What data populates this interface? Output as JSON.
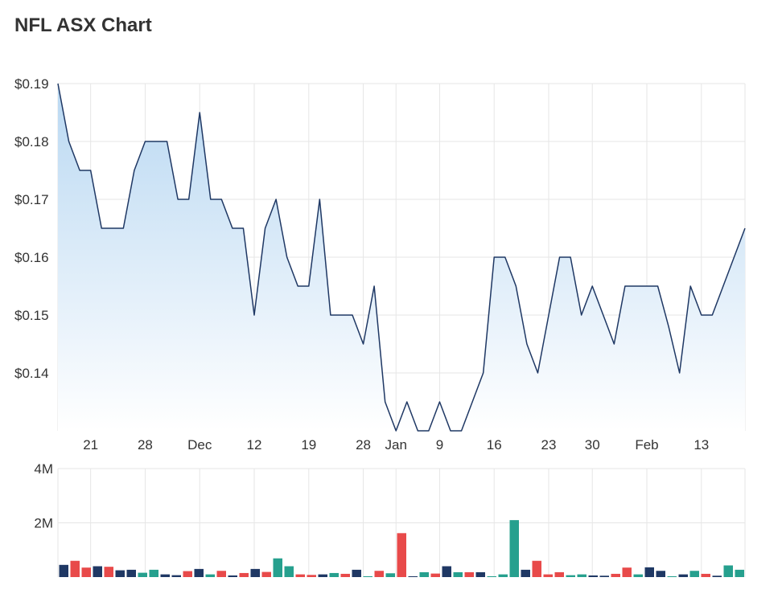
{
  "title": "NFL ASX Chart",
  "chart_data": [
    {
      "type": "area",
      "series": [
        {
          "values": [
            0.19,
            0.18,
            0.175,
            0.175,
            0.165,
            0.165,
            0.165,
            0.175,
            0.18,
            0.18,
            0.18,
            0.17,
            0.17,
            0.185,
            0.17,
            0.17,
            0.165,
            0.165,
            0.15,
            0.165,
            0.17,
            0.16,
            0.155,
            0.155,
            0.17,
            0.15,
            0.15,
            0.15,
            0.145,
            0.155,
            0.135,
            0.13,
            0.135,
            0.13,
            0.13,
            0.135,
            0.13,
            0.13,
            0.135,
            0.14,
            0.16,
            0.16,
            0.155,
            0.145,
            0.14,
            0.15,
            0.16,
            0.16,
            0.15,
            0.155,
            0.15,
            0.145,
            0.155,
            0.155,
            0.155,
            0.155,
            0.148,
            0.14,
            0.155,
            0.15,
            0.15,
            0.155,
            0.16,
            0.165
          ]
        }
      ],
      "y_tick_labels": [
        "$0.19",
        "$0.18",
        "$0.17",
        "$0.16",
        "$0.15",
        "$0.14"
      ],
      "y_ticks": [
        0.19,
        0.18,
        0.17,
        0.16,
        0.15,
        0.14
      ],
      "ylim": [
        0.13,
        0.19
      ],
      "x_tick_labels": [
        {
          "label": "21",
          "index": 3
        },
        {
          "label": "28",
          "index": 8
        },
        {
          "label": "Dec",
          "index": 13
        },
        {
          "label": "12",
          "index": 18
        },
        {
          "label": "19",
          "index": 23
        },
        {
          "label": "28",
          "index": 28
        },
        {
          "label": "Jan",
          "index": 31
        },
        {
          "label": "9",
          "index": 35
        },
        {
          "label": "16",
          "index": 40
        },
        {
          "label": "23",
          "index": 45
        },
        {
          "label": "30",
          "index": 49
        },
        {
          "label": "Feb",
          "index": 54
        },
        {
          "label": "13",
          "index": 59
        }
      ],
      "grid": true,
      "colors": {
        "line": "#1f3864",
        "fill_top": "#b9d8f2",
        "fill_bottom": "#ffffff",
        "grid": "#e6e6e6"
      }
    },
    {
      "type": "bar",
      "series": [
        {
          "values": [
            450000,
            600000,
            350000,
            400000,
            380000,
            250000,
            270000,
            160000,
            270000,
            100000,
            70000,
            220000,
            300000,
            100000,
            230000,
            60000,
            150000,
            300000,
            190000,
            690000,
            400000,
            100000,
            80000,
            100000,
            150000,
            120000,
            270000,
            20000,
            230000,
            140000,
            1620000,
            20000,
            180000,
            130000,
            400000,
            180000,
            180000,
            180000,
            30000,
            100000,
            2100000,
            270000,
            600000,
            100000,
            180000,
            70000,
            100000,
            60000,
            50000,
            120000,
            350000,
            100000,
            360000,
            230000,
            20000,
            100000,
            230000,
            120000,
            50000,
            430000,
            270000
          ],
          "colors": [
            "navy",
            "red",
            "red",
            "navy",
            "red",
            "navy",
            "navy",
            "teal",
            "teal",
            "navy",
            "navy",
            "red",
            "navy",
            "teal",
            "red",
            "navy",
            "red",
            "navy",
            "red",
            "teal",
            "teal",
            "red",
            "red",
            "navy",
            "teal",
            "red",
            "navy",
            "teal",
            "red",
            "teal",
            "red",
            "navy",
            "teal",
            "red",
            "navy",
            "teal",
            "red",
            "navy",
            "teal",
            "teal",
            "teal",
            "navy",
            "red",
            "red",
            "red",
            "teal",
            "teal",
            "navy",
            "navy",
            "red",
            "red",
            "teal",
            "navy",
            "navy",
            "teal",
            "navy",
            "teal",
            "red",
            "navy",
            "teal",
            "teal"
          ]
        }
      ],
      "y_tick_labels": [
        "4M",
        "2M"
      ],
      "y_ticks": [
        4000000,
        2000000
      ],
      "ylim": [
        0,
        4000000
      ],
      "colors": {
        "navy": "#1f3864",
        "red": "#e84a4a",
        "teal": "#26a08e"
      }
    }
  ]
}
